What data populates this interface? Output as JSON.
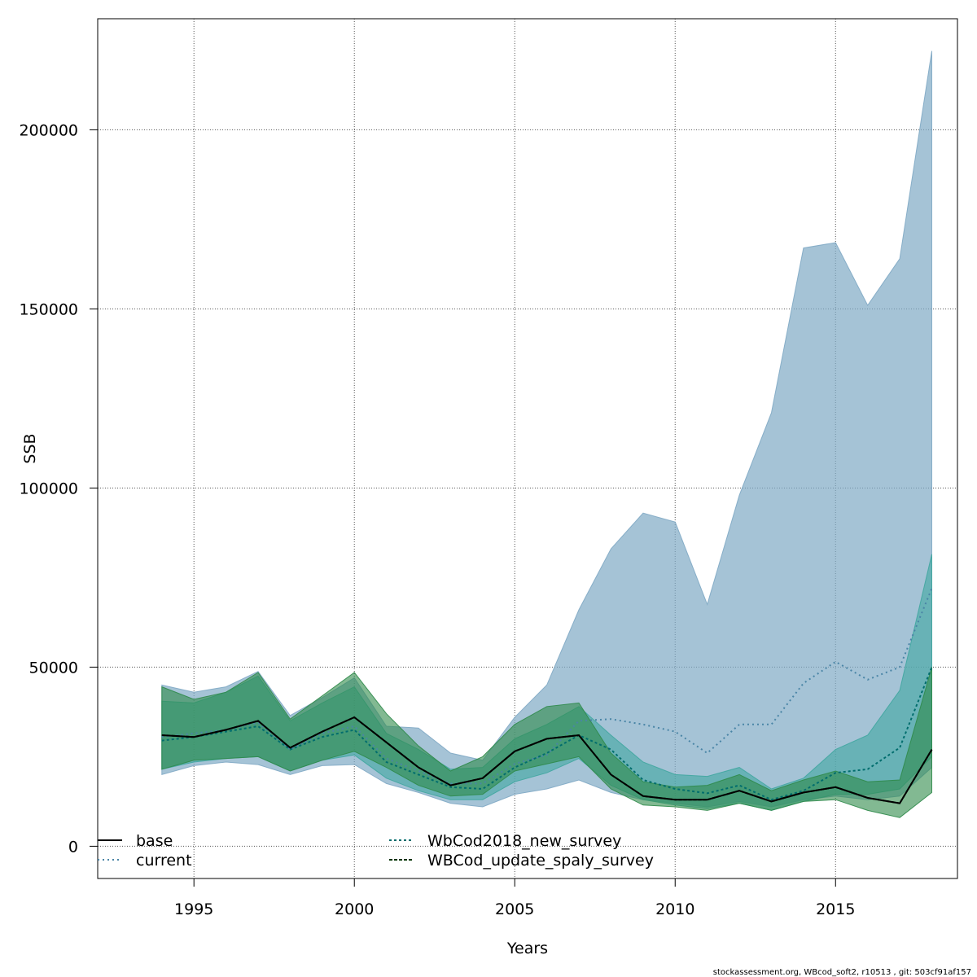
{
  "chart_data": {
    "type": "area",
    "title": "",
    "xlabel": "Years",
    "ylabel": "SSB",
    "xlim": [
      1992,
      2018.8
    ],
    "ylim": [
      -9000,
      231000
    ],
    "x_ticks": [
      1995,
      2000,
      2005,
      2010,
      2015
    ],
    "y_ticks": [
      0,
      50000,
      100000,
      150000,
      200000
    ],
    "x_tick_labels": [
      "1995",
      "2000",
      "2005",
      "2010",
      "2015"
    ],
    "y_tick_labels": [
      "0",
      "50000",
      "100000",
      "150000",
      "200000"
    ],
    "grid": true,
    "legend_position": "bottom-left",
    "x": [
      1994,
      1995,
      1996,
      1997,
      1998,
      1999,
      2000,
      2001,
      2002,
      2003,
      2004,
      2005,
      2006,
      2007,
      2008,
      2009,
      2010,
      2011,
      2012,
      2013,
      2014,
      2015,
      2016,
      2017,
      2018
    ],
    "series": [
      {
        "name": "current",
        "color": "#4a85a6",
        "fill": "#7fa9c4",
        "dash": "2,4",
        "values": [
          30500,
          31500,
          32500,
          34500,
          27000,
          31500,
          33500,
          24500,
          21000,
          17500,
          17500,
          23000,
          25500,
          35000,
          35500,
          34000,
          32000,
          26000,
          34000,
          34000,
          45500,
          51500,
          46500,
          50000,
          72000
        ],
        "lower": [
          20000,
          22500,
          23500,
          22800,
          20000,
          22500,
          22800,
          17500,
          15000,
          12000,
          11000,
          14500,
          16000,
          18500,
          15000,
          13000,
          12000,
          11000,
          12500,
          11000,
          13000,
          14000,
          13000,
          14000,
          22000
        ],
        "upper": [
          45000,
          43000,
          44500,
          48800,
          36500,
          41500,
          47000,
          33500,
          33000,
          26000,
          24000,
          36000,
          45000,
          66000,
          83000,
          93000,
          90500,
          67500,
          98000,
          121000,
          167000,
          168500,
          151000,
          164000,
          222000
        ]
      },
      {
        "name": "WbCod2018_new_survey",
        "color": "#006d6d",
        "fill": "#40a6a0",
        "dash": "3,3",
        "values": [
          29500,
          30500,
          32000,
          33500,
          27000,
          30500,
          32500,
          23500,
          20000,
          16500,
          16000,
          22000,
          26000,
          31000,
          27000,
          18500,
          16000,
          14800,
          17000,
          13000,
          15500,
          20500,
          21500,
          27500,
          50000
        ],
        "lower": [
          21500,
          23500,
          24500,
          25000,
          21000,
          24000,
          25500,
          19000,
          15500,
          13000,
          13000,
          18000,
          20500,
          24500,
          17000,
          13000,
          11500,
          10500,
          12000,
          10000,
          12500,
          14500,
          14500,
          16000,
          25000
        ],
        "upper": [
          40500,
          40000,
          43000,
          47500,
          35000,
          40000,
          44500,
          31500,
          27000,
          21500,
          22000,
          30000,
          34000,
          39000,
          31000,
          23500,
          20000,
          19500,
          22000,
          16000,
          19000,
          27000,
          31000,
          43500,
          81500
        ]
      },
      {
        "name": "WBCod_update_spaly_survey",
        "color": "#003300",
        "fill": "#2f8a4a",
        "dash": "4,2",
        "values": [
          31000,
          30500,
          32500,
          35000,
          27500,
          32000,
          36000,
          29000,
          22000,
          17000,
          19000,
          26500,
          30000,
          31000,
          20000,
          14000,
          13000,
          13000,
          15500,
          12500,
          15000,
          16500,
          13500,
          12000,
          27000
        ],
        "lower": [
          21500,
          24000,
          24500,
          25000,
          21000,
          24000,
          26500,
          22000,
          17000,
          14000,
          14500,
          21000,
          23000,
          25000,
          16000,
          11500,
          11000,
          10000,
          12000,
          10000,
          12500,
          13000,
          10000,
          8000,
          15000
        ],
        "upper": [
          44500,
          41000,
          43000,
          48500,
          35500,
          42000,
          48500,
          37000,
          28000,
          21000,
          25000,
          34000,
          39000,
          40000,
          26000,
          18000,
          16500,
          17000,
          20000,
          15500,
          18500,
          21000,
          18000,
          18500,
          50000
        ]
      },
      {
        "name": "base",
        "color": "#000000",
        "dash": "",
        "values": [
          31000,
          30500,
          32500,
          35000,
          27500,
          32000,
          36000,
          29000,
          22000,
          17000,
          19000,
          26500,
          30000,
          31000,
          20000,
          14000,
          13000,
          13000,
          15500,
          12500,
          15000,
          16500,
          13500,
          12000,
          27000
        ]
      }
    ],
    "legend": {
      "items": [
        "base",
        "current",
        "WbCod2018_new_survey",
        "WBCod_update_spaly_survey"
      ]
    },
    "footnote": "stockassessment.org, WBcod_soft2, r10513 , git: 503cf91af157"
  }
}
